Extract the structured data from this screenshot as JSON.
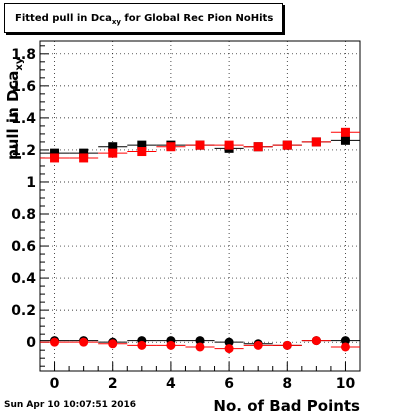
{
  "title_main": "Fitted pull in Dca",
  "title_sub": "xy",
  "title_rest": " for Global Rec Pion NoHits",
  "footer_timestamp": "Sun Apr 10 10:07:51 2016",
  "chart_data": {
    "type": "scatter",
    "xlabel": "No. of Bad Points",
    "ylabel_main": "pull in Dca",
    "ylabel_sub": "xy",
    "xlim": [
      -0.5,
      10.5
    ],
    "ylim": [
      -0.18,
      1.88
    ],
    "grid": true,
    "x_ticks": [
      0,
      2,
      4,
      6,
      8,
      10
    ],
    "x_tick_labels": [
      "0",
      "2",
      "4",
      "6",
      "8",
      "10"
    ],
    "y_ticks": [
      0,
      0.2,
      0.4,
      0.6,
      0.8,
      1,
      1.2,
      1.4,
      1.6,
      1.8
    ],
    "y_tick_labels": [
      "0",
      "0.2",
      "0.4",
      "0.6",
      "0.8",
      "1",
      "1.2",
      "1.4",
      "1.6",
      "1.8"
    ],
    "series": [
      {
        "marker": "square",
        "color": "#000000",
        "x": [
          0,
          1,
          2,
          3,
          4,
          5,
          6,
          7,
          8,
          9,
          10
        ],
        "y": [
          1.18,
          1.18,
          1.22,
          1.23,
          1.23,
          1.23,
          1.21,
          1.22,
          1.23,
          1.25,
          1.26
        ]
      },
      {
        "marker": "square",
        "color": "#ff0000",
        "x": [
          0,
          1,
          2,
          3,
          4,
          5,
          6,
          7,
          8,
          9,
          10
        ],
        "y": [
          1.15,
          1.15,
          1.18,
          1.19,
          1.22,
          1.23,
          1.23,
          1.22,
          1.23,
          1.25,
          1.31
        ]
      },
      {
        "marker": "circle",
        "color": "#000000",
        "x": [
          0,
          1,
          2,
          3,
          4,
          5,
          6,
          7,
          8,
          9,
          10
        ],
        "y": [
          0.01,
          0.01,
          0.0,
          0.01,
          0.01,
          0.01,
          0.0,
          -0.01,
          -0.02,
          0.01,
          0.01
        ]
      },
      {
        "marker": "circle",
        "color": "#ff0000",
        "x": [
          0,
          1,
          2,
          3,
          4,
          5,
          6,
          7,
          8,
          9,
          10
        ],
        "y": [
          0.0,
          0.0,
          -0.01,
          -0.02,
          -0.02,
          -0.03,
          -0.04,
          -0.02,
          -0.02,
          0.01,
          -0.03
        ]
      }
    ]
  }
}
